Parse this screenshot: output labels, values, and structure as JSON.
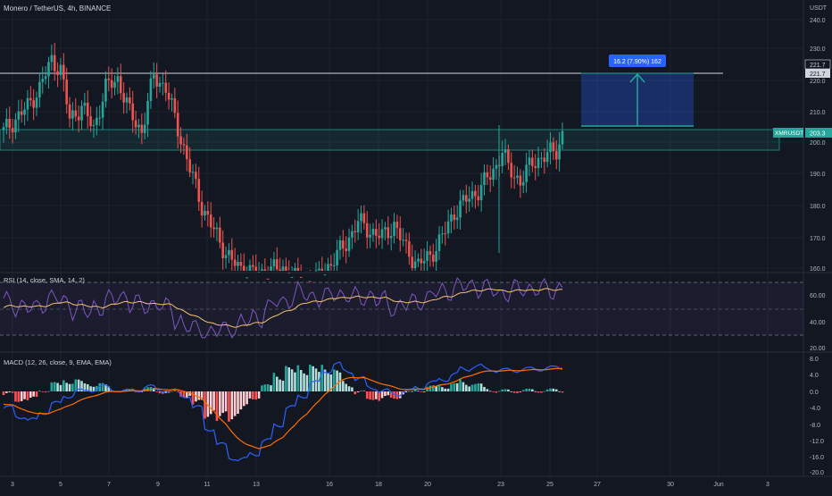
{
  "header": {
    "symbol_line": "Monero / TetherUS, 4h, BINANCE",
    "currency": "USDT"
  },
  "price_axis": {
    "ticks": [
      "240.0",
      "230.0",
      "220.0",
      "210.0",
      "200.0",
      "190.0",
      "180.0",
      "170.0",
      "160.0"
    ]
  },
  "levels": {
    "resistance_label_1": "221.7",
    "resistance_label_2": "221.7"
  },
  "last_price": {
    "ticker": "XMRUSDT",
    "value": "203.3",
    "color": "#26a69a"
  },
  "measure_tool": {
    "label": "16.2 (7.90%) 162",
    "box_color": "#2962ff"
  },
  "rsi": {
    "label": "RSI (14, close, SMA, 14, 2)",
    "ticks": [
      "60.00",
      "40.00",
      "20.00"
    ]
  },
  "macd": {
    "label": "MACD (12, 26, close, 9, EMA, EMA)",
    "ticks": [
      "8.0",
      "4.0",
      "0.0",
      "-4.0",
      "-8.0",
      "-12.0",
      "-16.0",
      "-20.0"
    ]
  },
  "time_axis": {
    "labels": [
      "3",
      "5",
      "7",
      "9",
      "11",
      "13",
      "16",
      "18",
      "20",
      "23",
      "25",
      "27",
      "30",
      "Jun",
      "3"
    ]
  },
  "colors": {
    "up": "#26a69a",
    "down": "#ef5350",
    "background": "#131722",
    "rsi_line": "#7e57c2",
    "rsi_ma": "#f7c26b",
    "macd_line": "#2962ff",
    "signal_line": "#ff6d00"
  }
}
